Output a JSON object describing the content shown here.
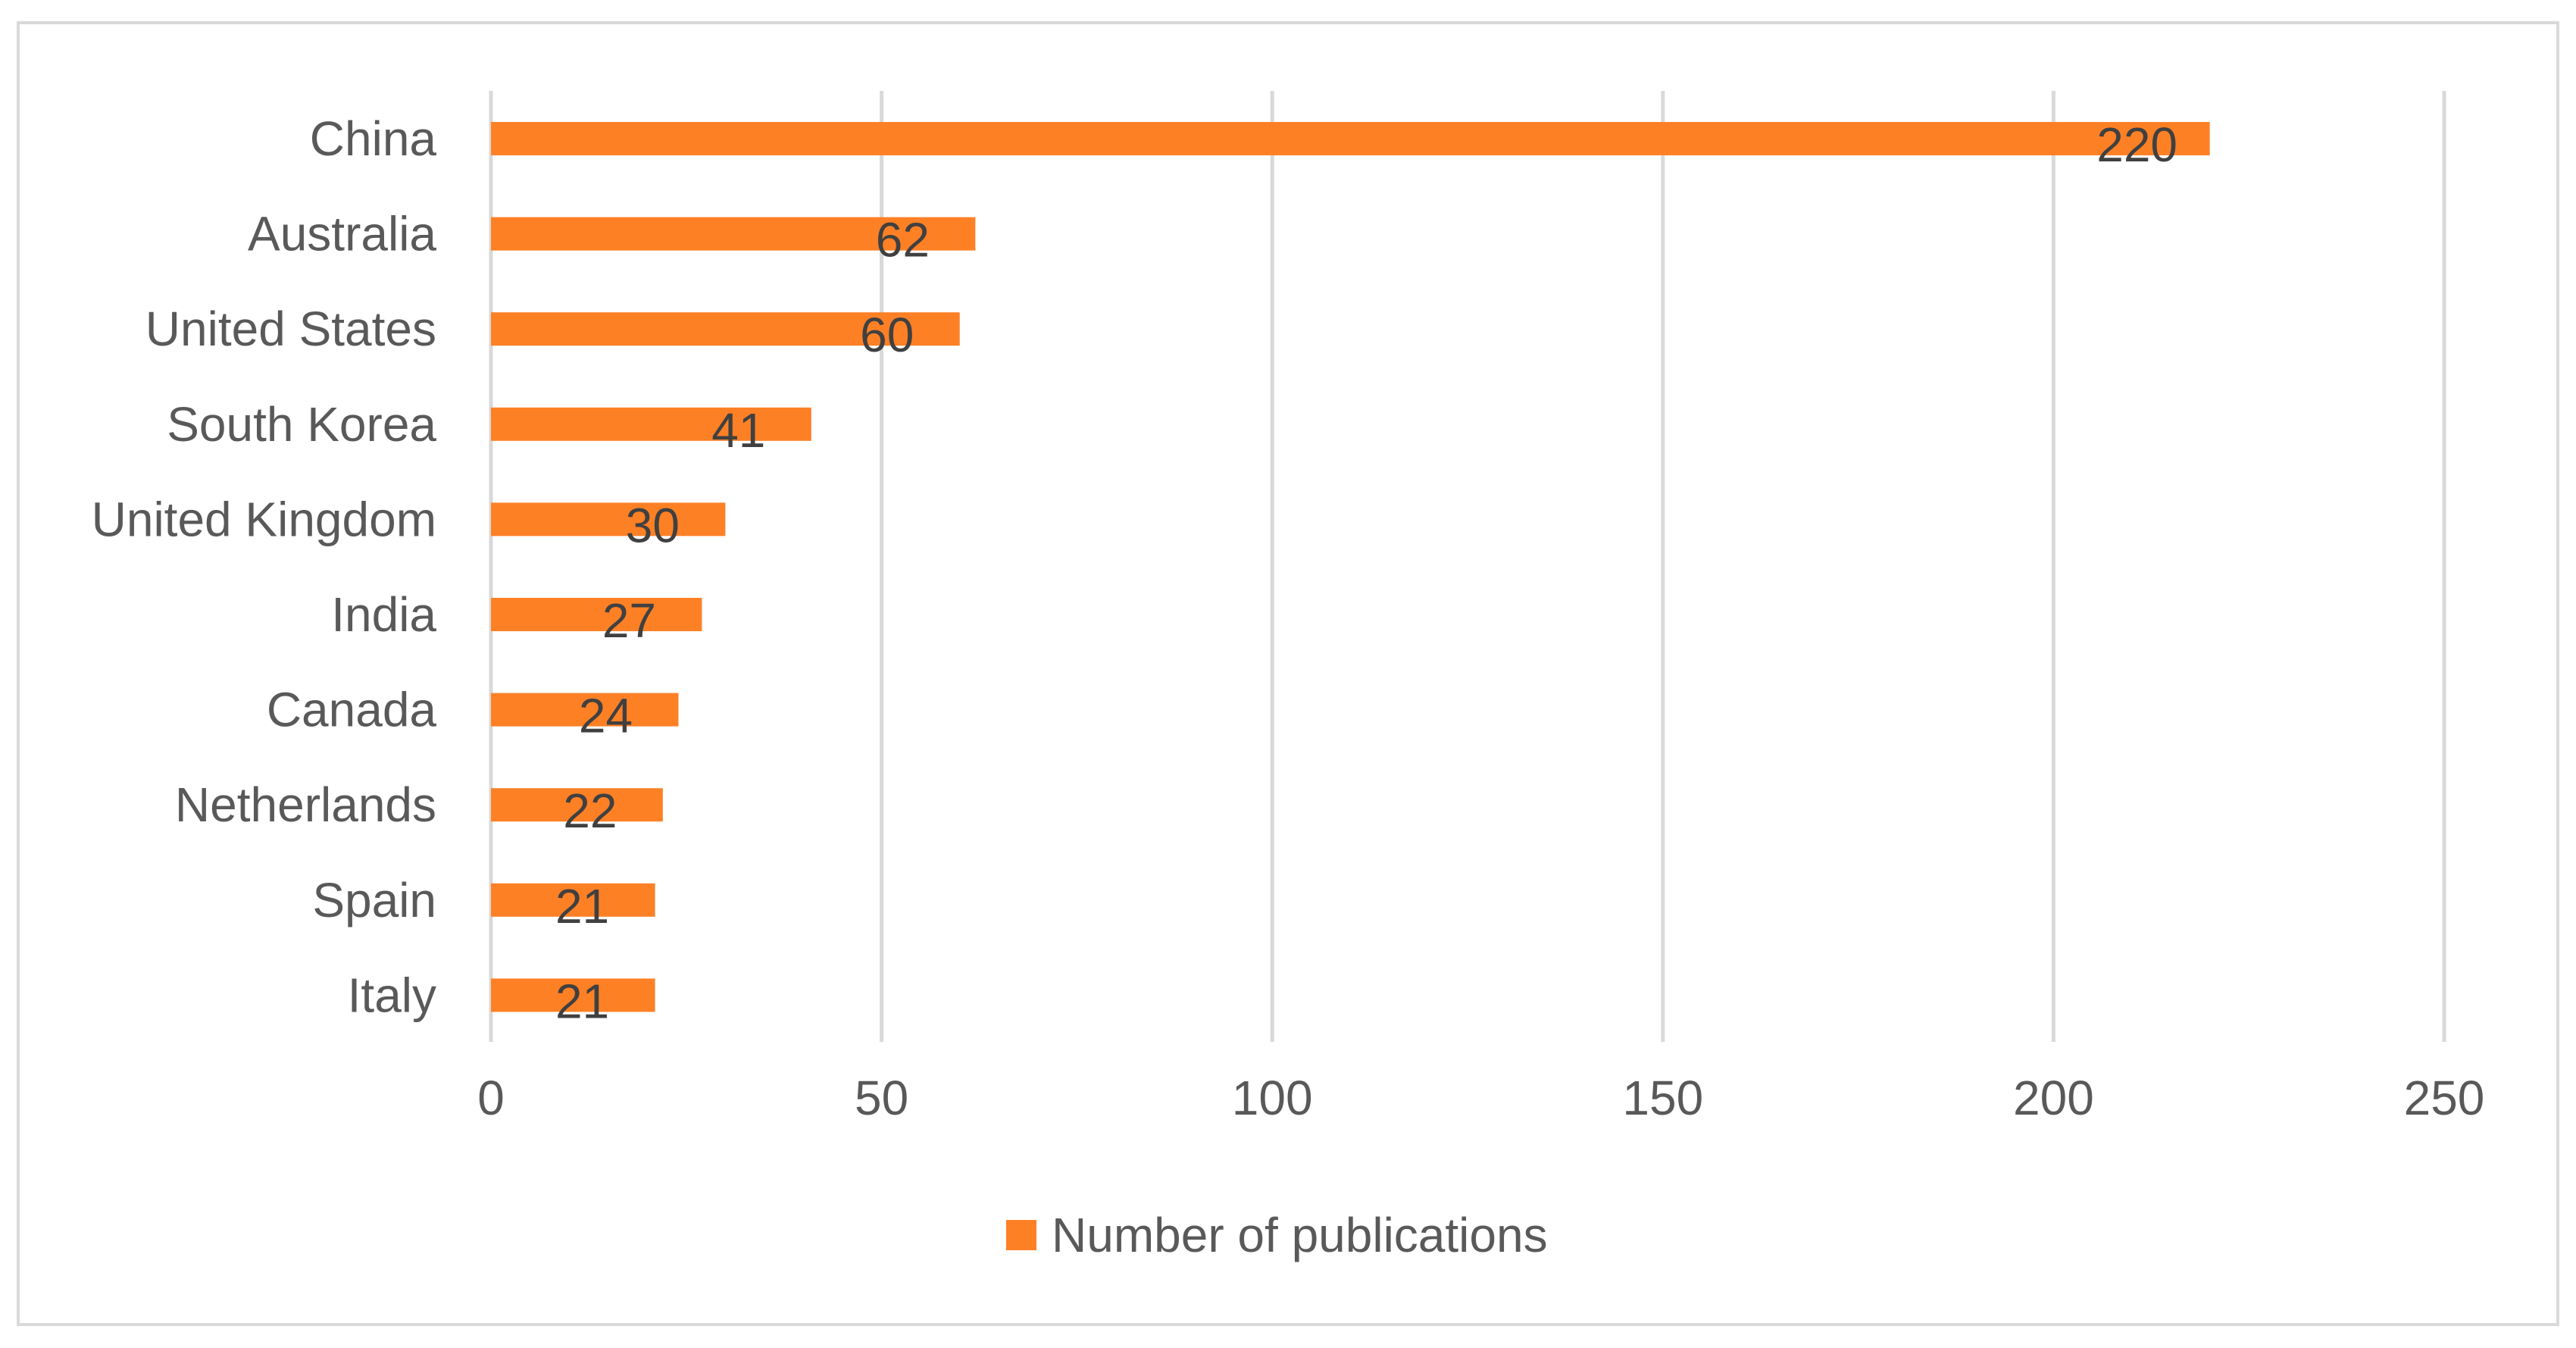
{
  "chart_data": {
    "type": "bar",
    "orientation": "horizontal",
    "categories": [
      "China",
      "Australia",
      "United States",
      "South Korea",
      "United Kingdom",
      "India",
      "Canada",
      "Netherlands",
      "Spain",
      "Italy"
    ],
    "series": [
      {
        "name": "Number of publications",
        "values": [
          220,
          62,
          60,
          41,
          30,
          27,
          24,
          22,
          21,
          21
        ],
        "color": "#fe8025"
      }
    ],
    "xlim": [
      0,
      250
    ],
    "xticks": [
      0,
      50,
      100,
      150,
      200,
      250
    ],
    "grid": "vertical",
    "legend_position": "bottom",
    "data_labels": true,
    "title": "",
    "xlabel": "",
    "ylabel": ""
  },
  "colors": {
    "bar": "#fe8025",
    "grid": "#d9d9d9",
    "frame": "#d9d9d9",
    "text": "#595959"
  }
}
